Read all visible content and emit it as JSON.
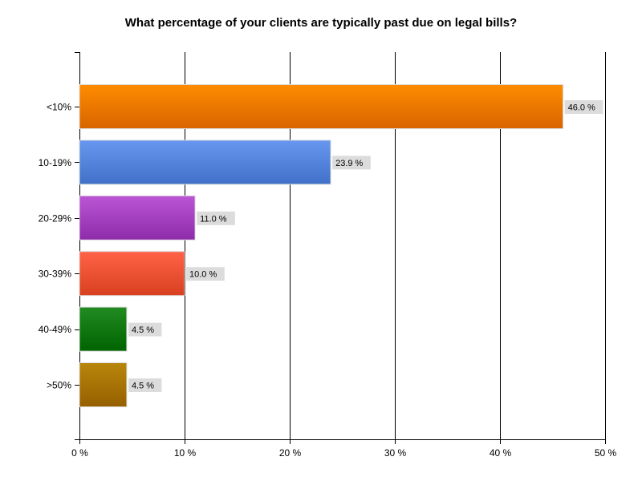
{
  "chart_data": {
    "type": "bar",
    "orientation": "horizontal",
    "title": "What percentage of your clients are typically past due on legal bills?",
    "categories": [
      "<10%",
      "10-19%",
      "20-29%",
      "30-39%",
      "40-49%",
      ">50%"
    ],
    "values": [
      46.0,
      23.9,
      11.0,
      10.0,
      4.5,
      4.5
    ],
    "data_labels": [
      "46.0 %",
      "23.9 %",
      "11.0 %",
      "10.0 %",
      "4.5 %",
      "4.5 %"
    ],
    "xlim": [
      0,
      50
    ],
    "x_ticks": [
      0,
      10,
      20,
      30,
      40,
      50
    ],
    "x_tick_labels": [
      "0 %",
      "10 %",
      "20 %",
      "30 %",
      "40 %",
      "50 %"
    ],
    "grid": true,
    "colors": [
      [
        "#ff8c00",
        "#d86400"
      ],
      [
        "#6797ee",
        "#4070c8"
      ],
      [
        "#bb55d6",
        "#8e2caa"
      ],
      [
        "#ff6347",
        "#d84020"
      ],
      [
        "#228b22",
        "#006400"
      ],
      [
        "#b8860b",
        "#966000"
      ]
    ]
  }
}
